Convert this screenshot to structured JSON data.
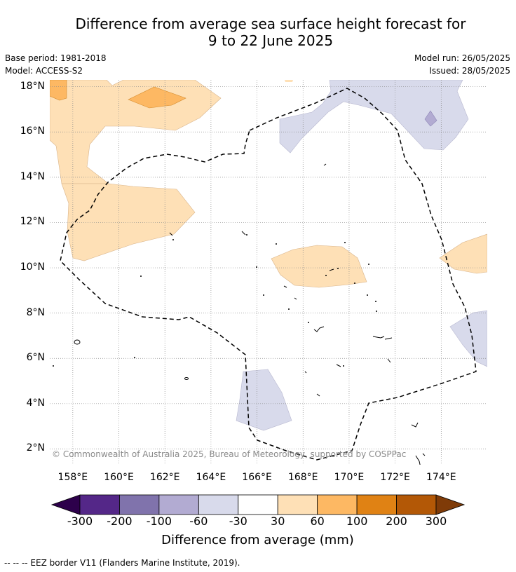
{
  "title": {
    "line1": "Difference from average sea surface height forecast for",
    "line2": "9 to 22 June 2025"
  },
  "meta": {
    "base_period": "Base period: 1981-2018",
    "model": "Model: ACCESS-S2",
    "model_run": "Model run: 26/05/2025",
    "issued": "Issued: 28/05/2025"
  },
  "map": {
    "lon_range": [
      157,
      176
    ],
    "lat_range": [
      1.3,
      18.3
    ],
    "lat_labels": [
      "18°N",
      "16°N",
      "14°N",
      "12°N",
      "10°N",
      "8°N",
      "6°N",
      "4°N",
      "2°N"
    ],
    "lon_labels": [
      "158°E",
      "160°E",
      "162°E",
      "164°E",
      "166°E",
      "168°E",
      "170°E",
      "172°E",
      "174°E"
    ],
    "copyright": "© Commonwealth of Australia 2025, Bureau of Meteorology, supported by COSPPac"
  },
  "colorbar": {
    "title": "Difference from average (mm)",
    "ticks": [
      "-300",
      "-200",
      "-100",
      "-60",
      "-30",
      "30",
      "60",
      "100",
      "200",
      "300"
    ],
    "colors": [
      "#2d004b",
      "#542788",
      "#8073ac",
      "#b2abd2",
      "#d8daeb",
      "#ffffff",
      "#fee0b6",
      "#fdb863",
      "#e08214",
      "#b35806",
      "#7f3b08"
    ]
  },
  "legend": {
    "eez": "--  --  -- EEZ border V11 (Flanders Marine Institute, 2019)."
  }
}
